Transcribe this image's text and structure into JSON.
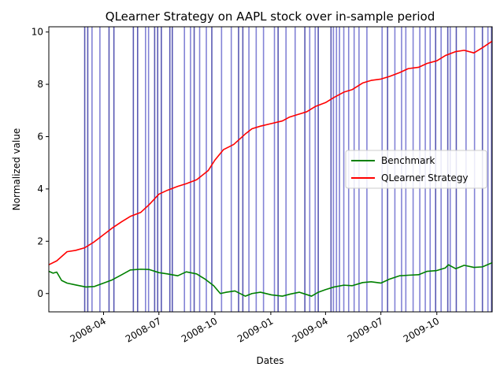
{
  "chart_data": {
    "type": "line",
    "title": "QLearner Strategy on AAPL stock over in-sample period",
    "xlabel": "Dates",
    "ylabel": "Normalized value",
    "xlim": [
      "2008-01-02",
      "2009-12-31"
    ],
    "ylim": [
      -0.7,
      10.2
    ],
    "yticks": [
      0,
      2,
      4,
      6,
      8,
      10
    ],
    "xticks": [
      "2008-04",
      "2008-07",
      "2008-10",
      "2009-01",
      "2009-04",
      "2009-07",
      "2009-10"
    ],
    "grid": false,
    "legend_position": "center-right",
    "series": [
      {
        "name": "Benchmark",
        "color": "#008000",
        "points": [
          [
            "2008-01-02",
            0.85
          ],
          [
            "2008-01-09",
            0.78
          ],
          [
            "2008-01-15",
            0.82
          ],
          [
            "2008-01-23",
            0.5
          ],
          [
            "2008-02-01",
            0.4
          ],
          [
            "2008-02-15",
            0.33
          ],
          [
            "2008-03-03",
            0.25
          ],
          [
            "2008-03-17",
            0.27
          ],
          [
            "2008-04-01",
            0.4
          ],
          [
            "2008-04-15",
            0.52
          ],
          [
            "2008-05-01",
            0.72
          ],
          [
            "2008-05-15",
            0.9
          ],
          [
            "2008-06-01",
            0.93
          ],
          [
            "2008-06-15",
            0.92
          ],
          [
            "2008-07-01",
            0.8
          ],
          [
            "2008-07-15",
            0.75
          ],
          [
            "2008-08-01",
            0.68
          ],
          [
            "2008-08-15",
            0.83
          ],
          [
            "2008-09-01",
            0.75
          ],
          [
            "2008-09-15",
            0.55
          ],
          [
            "2008-09-29",
            0.3
          ],
          [
            "2008-10-10",
            0.0
          ],
          [
            "2008-10-20",
            0.05
          ],
          [
            "2008-11-03",
            0.1
          ],
          [
            "2008-11-20",
            -0.1
          ],
          [
            "2008-12-01",
            0.0
          ],
          [
            "2008-12-15",
            0.05
          ],
          [
            "2009-01-02",
            -0.05
          ],
          [
            "2009-01-20",
            -0.1
          ],
          [
            "2009-02-02",
            -0.02
          ],
          [
            "2009-02-17",
            0.05
          ],
          [
            "2009-03-09",
            -0.1
          ],
          [
            "2009-03-20",
            0.05
          ],
          [
            "2009-04-01",
            0.15
          ],
          [
            "2009-04-15",
            0.25
          ],
          [
            "2009-05-01",
            0.32
          ],
          [
            "2009-05-15",
            0.3
          ],
          [
            "2009-06-01",
            0.42
          ],
          [
            "2009-06-15",
            0.45
          ],
          [
            "2009-07-01",
            0.4
          ],
          [
            "2009-07-15",
            0.55
          ],
          [
            "2009-08-01",
            0.68
          ],
          [
            "2009-08-15",
            0.7
          ],
          [
            "2009-09-01",
            0.72
          ],
          [
            "2009-09-15",
            0.85
          ],
          [
            "2009-10-01",
            0.88
          ],
          [
            "2009-10-15",
            0.98
          ],
          [
            "2009-10-20",
            1.1
          ],
          [
            "2009-11-01",
            0.95
          ],
          [
            "2009-11-15",
            1.08
          ],
          [
            "2009-12-01",
            1.0
          ],
          [
            "2009-12-15",
            1.02
          ],
          [
            "2009-12-31",
            1.18
          ]
        ]
      },
      {
        "name": "QLearner Strategy",
        "color": "#ff0000",
        "points": [
          [
            "2008-01-02",
            1.1
          ],
          [
            "2008-01-15",
            1.25
          ],
          [
            "2008-02-01",
            1.6
          ],
          [
            "2008-02-15",
            1.65
          ],
          [
            "2008-03-01",
            1.75
          ],
          [
            "2008-03-15",
            1.95
          ],
          [
            "2008-04-01",
            2.25
          ],
          [
            "2008-04-15",
            2.5
          ],
          [
            "2008-05-01",
            2.75
          ],
          [
            "2008-05-15",
            2.95
          ],
          [
            "2008-06-01",
            3.1
          ],
          [
            "2008-06-15",
            3.4
          ],
          [
            "2008-07-01",
            3.8
          ],
          [
            "2008-07-15",
            3.95
          ],
          [
            "2008-08-01",
            4.1
          ],
          [
            "2008-08-15",
            4.2
          ],
          [
            "2008-09-01",
            4.35
          ],
          [
            "2008-09-20",
            4.7
          ],
          [
            "2008-10-01",
            5.1
          ],
          [
            "2008-10-15",
            5.5
          ],
          [
            "2008-11-01",
            5.7
          ],
          [
            "2008-11-20",
            6.1
          ],
          [
            "2008-12-01",
            6.3
          ],
          [
            "2008-12-15",
            6.4
          ],
          [
            "2009-01-02",
            6.5
          ],
          [
            "2009-01-20",
            6.6
          ],
          [
            "2009-02-01",
            6.75
          ],
          [
            "2009-02-15",
            6.85
          ],
          [
            "2009-03-01",
            6.95
          ],
          [
            "2009-03-15",
            7.15
          ],
          [
            "2009-04-01",
            7.3
          ],
          [
            "2009-04-15",
            7.5
          ],
          [
            "2009-05-01",
            7.7
          ],
          [
            "2009-05-15",
            7.8
          ],
          [
            "2009-06-01",
            8.05
          ],
          [
            "2009-06-15",
            8.15
          ],
          [
            "2009-07-01",
            8.2
          ],
          [
            "2009-07-15",
            8.3
          ],
          [
            "2009-08-01",
            8.45
          ],
          [
            "2009-08-15",
            8.6
          ],
          [
            "2009-09-01",
            8.65
          ],
          [
            "2009-09-15",
            8.8
          ],
          [
            "2009-10-01",
            8.9
          ],
          [
            "2009-10-15",
            9.1
          ],
          [
            "2009-11-01",
            9.25
          ],
          [
            "2009-11-15",
            9.3
          ],
          [
            "2009-12-01",
            9.2
          ],
          [
            "2009-12-15",
            9.4
          ],
          [
            "2009-12-31",
            9.65
          ]
        ]
      }
    ],
    "trade_markers": [
      {
        "date": "2008-03-01",
        "color": "#00008b"
      },
      {
        "date": "2008-03-06",
        "color": "#00008b"
      },
      {
        "date": "2008-03-13",
        "color": "#4040c0"
      },
      {
        "date": "2008-03-26",
        "color": "#4040c0"
      },
      {
        "date": "2008-04-10",
        "color": "#00008b"
      },
      {
        "date": "2008-04-18",
        "color": "#00008b"
      },
      {
        "date": "2008-05-20",
        "color": "#00008b"
      },
      {
        "date": "2008-05-27",
        "color": "#00008b"
      },
      {
        "date": "2008-06-09",
        "color": "#4040c0"
      },
      {
        "date": "2008-06-14",
        "color": "#4040c0"
      },
      {
        "date": "2008-06-24",
        "color": "#00008b"
      },
      {
        "date": "2008-06-29",
        "color": "#00008b"
      },
      {
        "date": "2008-07-05",
        "color": "#00008b"
      },
      {
        "date": "2008-07-19",
        "color": "#00008b"
      },
      {
        "date": "2008-07-23",
        "color": "#00008b"
      },
      {
        "date": "2008-08-12",
        "color": "#4040c0"
      },
      {
        "date": "2008-08-22",
        "color": "#4040c0"
      },
      {
        "date": "2008-08-28",
        "color": "#00008b"
      },
      {
        "date": "2008-09-06",
        "color": "#4040c0"
      },
      {
        "date": "2008-09-17",
        "color": "#4040c0"
      },
      {
        "date": "2008-09-26",
        "color": "#00008b"
      },
      {
        "date": "2008-10-12",
        "color": "#4040c0"
      },
      {
        "date": "2008-10-28",
        "color": "#4040c0"
      },
      {
        "date": "2008-11-09",
        "color": "#00008b"
      },
      {
        "date": "2008-11-16",
        "color": "#00008b"
      },
      {
        "date": "2008-11-26",
        "color": "#4040c0"
      },
      {
        "date": "2008-12-08",
        "color": "#4040c0"
      },
      {
        "date": "2008-12-20",
        "color": "#4040c0"
      },
      {
        "date": "2009-01-07",
        "color": "#4040c0"
      },
      {
        "date": "2009-01-13",
        "color": "#00008b"
      },
      {
        "date": "2009-01-26",
        "color": "#4040c0"
      },
      {
        "date": "2009-02-10",
        "color": "#4040c0"
      },
      {
        "date": "2009-02-26",
        "color": "#00008b"
      },
      {
        "date": "2009-03-06",
        "color": "#4040c0"
      },
      {
        "date": "2009-03-15",
        "color": "#4040c0"
      },
      {
        "date": "2009-03-20",
        "color": "#00008b"
      },
      {
        "date": "2009-04-10",
        "color": "#00008b"
      },
      {
        "date": "2009-04-14",
        "color": "#4040c0"
      },
      {
        "date": "2009-04-19",
        "color": "#4040c0"
      },
      {
        "date": "2009-04-24",
        "color": "#4040c0"
      },
      {
        "date": "2009-05-01",
        "color": "#4040c0"
      },
      {
        "date": "2009-05-09",
        "color": "#4040c0"
      },
      {
        "date": "2009-05-18",
        "color": "#4040c0"
      },
      {
        "date": "2009-05-26",
        "color": "#4040c0"
      },
      {
        "date": "2009-06-08",
        "color": "#4040c0"
      },
      {
        "date": "2009-07-03",
        "color": "#4040c0"
      },
      {
        "date": "2009-07-12",
        "color": "#00008b"
      },
      {
        "date": "2009-07-24",
        "color": "#4040c0"
      },
      {
        "date": "2009-08-04",
        "color": "#4040c0"
      },
      {
        "date": "2009-08-11",
        "color": "#4040c0"
      },
      {
        "date": "2009-08-23",
        "color": "#4040c0"
      },
      {
        "date": "2009-09-03",
        "color": "#4040c0"
      },
      {
        "date": "2009-09-12",
        "color": "#4040c0"
      },
      {
        "date": "2009-09-20",
        "color": "#4040c0"
      },
      {
        "date": "2009-09-29",
        "color": "#00008b"
      },
      {
        "date": "2009-10-08",
        "color": "#4040c0"
      },
      {
        "date": "2009-10-19",
        "color": "#00008b"
      },
      {
        "date": "2009-10-23",
        "color": "#4040c0"
      },
      {
        "date": "2009-11-02",
        "color": "#00008b"
      },
      {
        "date": "2009-11-18",
        "color": "#4040c0"
      },
      {
        "date": "2009-12-02",
        "color": "#4040c0"
      },
      {
        "date": "2009-12-15",
        "color": "#00008b"
      },
      {
        "date": "2009-12-24",
        "color": "#4040c0"
      },
      {
        "date": "2009-12-30",
        "color": "#00008b"
      }
    ]
  }
}
